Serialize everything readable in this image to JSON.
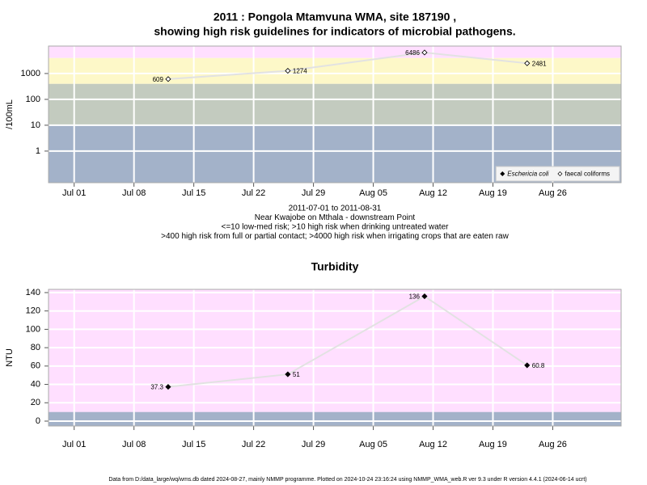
{
  "chart_data": [
    {
      "type": "line",
      "title": [
        "2011 : Pongola Mtamvuna WMA, site 187190 ,",
        "showing high risk guidelines for indicators of microbial pathogens."
      ],
      "notes": [
        "2011-07-01 to 2011-08-31",
        "Near Kwajobe on Mthala - downstream Point",
        "<=10 low-med risk; >10 high risk when drinking untreated water",
        ">400 high risk from full or partial contact; >4000 high risk when irrigating crops that are eaten raw"
      ],
      "ylabel": "/100mL",
      "x": [
        "2011-07-12",
        "2011-07-26",
        "2011-08-11",
        "2011-08-23"
      ],
      "series": [
        {
          "name": "Eschericia coli",
          "marker": "filled",
          "values": [
            null,
            null,
            null,
            null
          ]
        },
        {
          "name": "faecal coliforms",
          "marker": "open",
          "values": [
            609,
            1274,
            6486,
            2481
          ]
        }
      ],
      "log": true,
      "ylim": [
        0.06,
        11500
      ],
      "yticks": [
        1,
        10,
        100,
        1000
      ],
      "xlim": [
        "2011-06-28",
        "2011-09-03"
      ],
      "xticks": [
        {
          "value": "2011-07-01",
          "label": "Jul 01"
        },
        {
          "value": "2011-07-08",
          "label": "Jul 08"
        },
        {
          "value": "2011-07-15",
          "label": "Jul 15"
        },
        {
          "value": "2011-07-22",
          "label": "Jul 22"
        },
        {
          "value": "2011-07-29",
          "label": "Jul 29"
        },
        {
          "value": "2011-08-05",
          "label": "Aug 05"
        },
        {
          "value": "2011-08-12",
          "label": "Aug 12"
        },
        {
          "value": "2011-08-19",
          "label": "Aug 19"
        },
        {
          "value": "2011-08-26",
          "label": "Aug 26"
        }
      ],
      "bands": [
        {
          "max": 10,
          "color": "#a3b2c9"
        },
        {
          "min": 10,
          "max": 400,
          "color": "#c3cbbf"
        },
        {
          "min": 400,
          "max": 4000,
          "color": "#fdf8c8"
        },
        {
          "min": 4000,
          "color": "#ffdfff"
        }
      ],
      "line_color": "#e2e2e2",
      "grid": true,
      "legend": "lower right"
    },
    {
      "type": "line",
      "title": [
        "Turbidity"
      ],
      "ylabel": "NTU",
      "x": [
        "2011-07-12",
        "2011-07-26",
        "2011-08-11",
        "2011-08-23"
      ],
      "series": [
        {
          "marker": "filled",
          "values": [
            37.3,
            51,
            136,
            60.8
          ]
        }
      ],
      "log": false,
      "ylim": [
        -5.3,
        143.5
      ],
      "yticks": [
        0,
        20,
        40,
        60,
        80,
        100,
        120,
        140
      ],
      "xlim": [
        "2011-06-28",
        "2011-09-03"
      ],
      "xticks": [
        {
          "value": "2011-07-01",
          "label": "Jul 01"
        },
        {
          "value": "2011-07-08",
          "label": "Jul 08"
        },
        {
          "value": "2011-07-15",
          "label": "Jul 15"
        },
        {
          "value": "2011-07-22",
          "label": "Jul 22"
        },
        {
          "value": "2011-07-29",
          "label": "Jul 29"
        },
        {
          "value": "2011-08-05",
          "label": "Aug 05"
        },
        {
          "value": "2011-08-12",
          "label": "Aug 12"
        },
        {
          "value": "2011-08-19",
          "label": "Aug 19"
        },
        {
          "value": "2011-08-26",
          "label": "Aug 26"
        }
      ],
      "bands": [
        {
          "max": 10,
          "color": "#a3b2c9"
        },
        {
          "min": 10,
          "color": "#ffdfff"
        }
      ],
      "line_color": "#e2e2e2",
      "grid": true
    }
  ],
  "footer": "Data from D:/data_large/wq/wms.db dated 2024-08-27, mainly NMMP programme. Plotted on 2024-10-24 23:16:24 using NMMP_WMA_web.R ver 9.3 under R version 4.4.1 (2024-06-14 ucrt)"
}
